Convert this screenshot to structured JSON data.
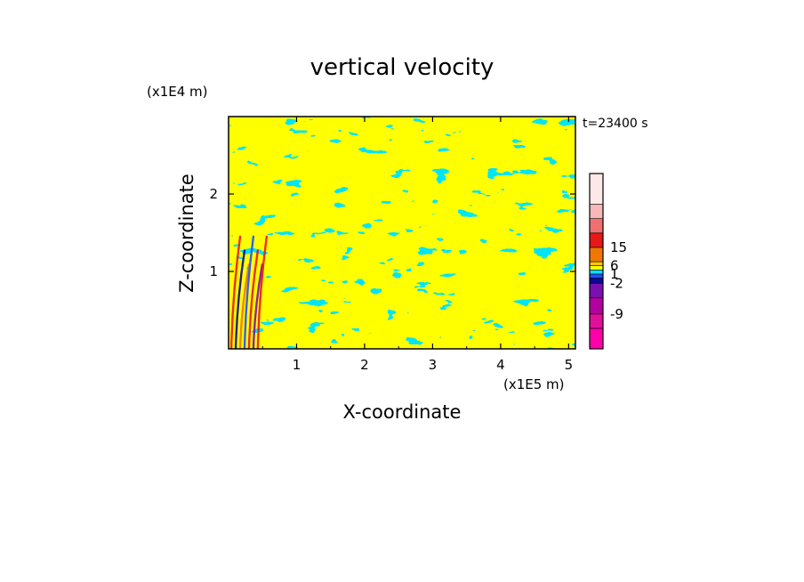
{
  "chart_data": {
    "type": "heatmap",
    "title": "vertical velocity",
    "xlabel": "X-coordinate",
    "ylabel": "Z-coordinate",
    "x_unit": "(x1E5 m)",
    "y_unit": "(x1E4 m)",
    "time_label": "t=23400 s",
    "x_range": [
      0,
      5.1
    ],
    "y_range": [
      0,
      3.0
    ],
    "x_ticks": [
      "1",
      "2",
      "3",
      "4",
      "5"
    ],
    "y_ticks": [
      "1",
      "2"
    ],
    "x_tick_values": [
      1,
      2,
      3,
      4,
      5
    ],
    "y_tick_values": [
      1,
      2
    ],
    "dominant_field": {
      "positive_color": "#ffff00",
      "negative_color": "#00e5f5",
      "description_levels": "alternating weak updraft / downdraft streaks"
    },
    "strong_wave_region": {
      "x_range": [
        0,
        0.55
      ],
      "y_range": [
        0,
        1.45
      ]
    },
    "colorbar": {
      "tick_labels": [
        "15",
        "6",
        "1",
        "-2",
        "-9"
      ],
      "tick_level_index": [
        9,
        7,
        5,
        3,
        1
      ],
      "levels": [
        {
          "color": "#ff00aa"
        },
        {
          "color": "#e0109a"
        },
        {
          "color": "#b4009e"
        },
        {
          "color": "#7a10b0"
        },
        {
          "color": "#0a0a9a"
        },
        {
          "color": "#2050ff"
        },
        {
          "color": "#00e5f5"
        },
        {
          "color": "#ffff00"
        },
        {
          "color": "#ffc800"
        },
        {
          "color": "#f07800"
        },
        {
          "color": "#e81818"
        },
        {
          "color": "#f07070"
        },
        {
          "color": "#f8b8b8"
        },
        {
          "color": "#fde8e8"
        }
      ],
      "level_heights": [
        2,
        1.4,
        1.6,
        1.4,
        0.5,
        0.4,
        0.4,
        0.4,
        0.4,
        1.4,
        1.4,
        1.4,
        1.4,
        3.0
      ]
    }
  }
}
